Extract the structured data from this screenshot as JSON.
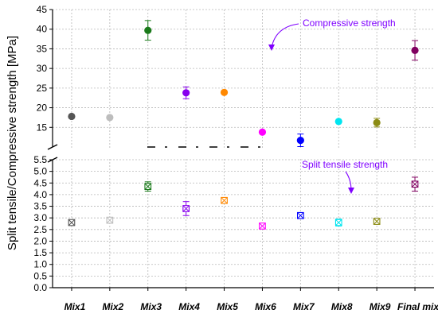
{
  "chart_data": {
    "type": "scatter",
    "ylabel": "Split tensile/Compressive strength [MPa]",
    "categories": [
      "Mix1",
      "Mix2",
      "Mix3",
      "Mix4",
      "Mix5",
      "Mix6",
      "Mix7",
      "Mix8",
      "Mix9",
      "Final mix"
    ],
    "colors": [
      "#555555",
      "#bdbdbd",
      "#1a7a1a",
      "#8800ee",
      "#ff8800",
      "#ff00ff",
      "#0000ff",
      "#00e5f0",
      "#8c8c14",
      "#800060"
    ],
    "grid": true,
    "axis_break": true,
    "upper_axis": {
      "ylim": [
        10,
        45
      ],
      "ticks": [
        "15",
        "20",
        "25",
        "30",
        "35",
        "40",
        "45"
      ]
    },
    "lower_axis": {
      "ylim": [
        0,
        5.5
      ],
      "ticks": [
        "0.0",
        "0.5",
        "1.0",
        "1.5",
        "2.0",
        "2.5",
        "3.0",
        "3.5",
        "4.0",
        "4.5",
        "5.0",
        "5.5"
      ]
    },
    "series": [
      {
        "annotation": "Compressive strength",
        "marker": "filled-circle",
        "axis": "upper",
        "values": [
          17.8,
          17.5,
          39.7,
          23.8,
          23.9,
          13.8,
          11.7,
          16.5,
          16.2,
          34.6
        ],
        "errors": [
          0.0,
          0.0,
          2.5,
          1.5,
          0.0,
          0.0,
          1.6,
          0.0,
          1.1,
          2.5
        ]
      },
      {
        "annotation": "Split tensile strength",
        "marker": "crossed-square",
        "axis": "lower",
        "values": [
          2.8,
          2.9,
          4.35,
          3.4,
          3.75,
          2.65,
          3.1,
          2.8,
          2.85,
          4.45
        ],
        "errors": [
          0.05,
          0.05,
          0.2,
          0.3,
          0.05,
          0.05,
          0.05,
          0.15,
          0.1,
          0.3
        ]
      }
    ]
  }
}
